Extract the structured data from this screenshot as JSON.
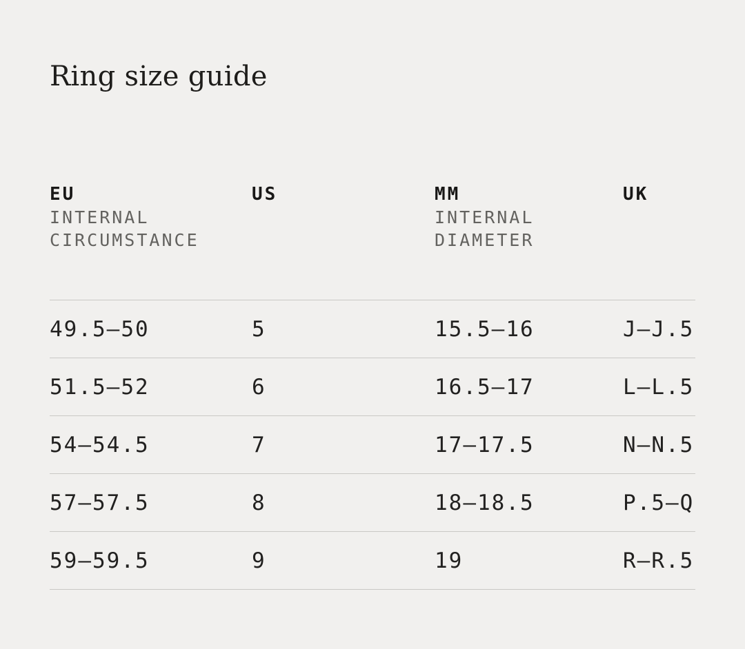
{
  "page": {
    "title": "Ring size guide",
    "background_color": "#f1f0ee",
    "rule_color": "#c9c8c5",
    "text_color": "#222120",
    "subheader_color": "#63625f"
  },
  "table": {
    "columns": [
      {
        "label": "EU",
        "sub1": "INTERNAL",
        "sub2": "CIRCUMSTANCE"
      },
      {
        "label": "US",
        "sub1": "",
        "sub2": ""
      },
      {
        "label": "MM",
        "sub1": "INTERNAL",
        "sub2": "DIAMETER"
      },
      {
        "label": "UK",
        "sub1": "",
        "sub2": ""
      }
    ],
    "rows": [
      [
        "49.5—50",
        "5",
        "15.5—16",
        "J—J.5"
      ],
      [
        "51.5—52",
        "6",
        "16.5—17",
        "L—L.5"
      ],
      [
        "54—54.5",
        "7",
        "17—17.5",
        "N—N.5"
      ],
      [
        "57—57.5",
        "8",
        "18—18.5",
        "P.5—Q"
      ],
      [
        "59—59.5",
        "9",
        "19",
        "R—R.5"
      ]
    ]
  }
}
